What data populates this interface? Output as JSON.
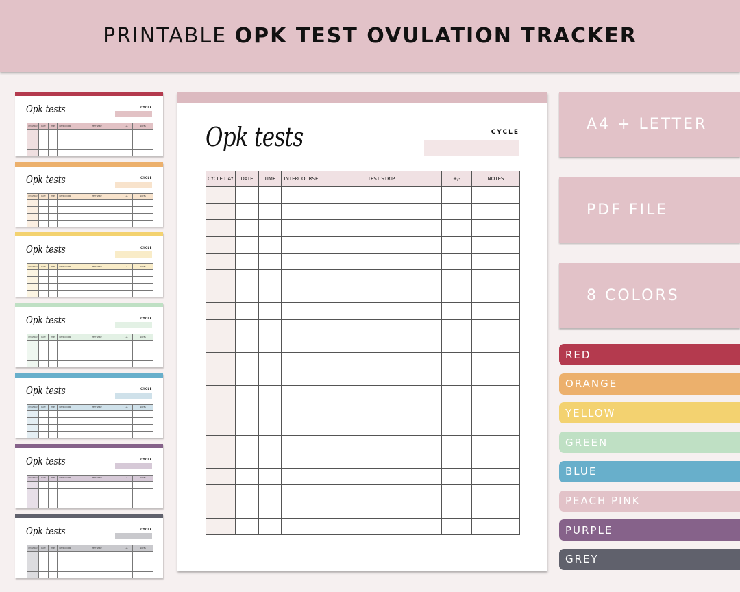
{
  "header": {
    "title_light": "PRINTABLE",
    "title_bold": "OPK TEST OVULATION TRACKER",
    "bg_color": "#e2c2c8"
  },
  "sheet": {
    "title": "Opk tests",
    "cycle_label": "CYCLE",
    "accent_color": "#dcbac0",
    "columns": [
      "CYCLE DAY",
      "DATE",
      "TIME",
      "INTERCOURSE",
      "TEST STRIP",
      "+/-",
      "NOTES"
    ],
    "row_count": 21
  },
  "thumbnails": [
    {
      "color_name": "red",
      "bar": "#b43a4e",
      "header": "#e2c2c5",
      "first_col": "#efdfe0",
      "box": "#e2c2c5"
    },
    {
      "color_name": "orange",
      "bar": "#ecb06c",
      "header": "#f8e3cc",
      "first_col": "#fbefe2",
      "box": "#f8e3cc"
    },
    {
      "color_name": "yellow",
      "bar": "#f3d270",
      "header": "#f9ecc8",
      "first_col": "#fcf5e3",
      "box": "#f9ecc8"
    },
    {
      "color_name": "green",
      "bar": "#bfe0c4",
      "header": "#e3f1e5",
      "first_col": "#eff7f0",
      "box": "#e3f1e5"
    },
    {
      "color_name": "blue",
      "bar": "#68afcb",
      "header": "#cfe1ea",
      "first_col": "#e4eef3",
      "box": "#cfe1ea"
    },
    {
      "color_name": "purple",
      "bar": "#86628a",
      "header": "#d6c9d7",
      "first_col": "#e7dfe8",
      "box": "#d6c9d7"
    },
    {
      "color_name": "grey",
      "bar": "#60616c",
      "header": "#c9c9cd",
      "first_col": "#dcdcdf",
      "box": "#c9c9cd"
    }
  ],
  "features": [
    "A4 + LETTER",
    "PDF FILE",
    "8 COLORS"
  ],
  "colors": [
    {
      "label": "RED",
      "hex": "#b43a4e"
    },
    {
      "label": "ORANGE",
      "hex": "#ecb06c"
    },
    {
      "label": "YELLOW",
      "hex": "#f3d270"
    },
    {
      "label": "GREEN",
      "hex": "#bfe0c4"
    },
    {
      "label": "BLUE",
      "hex": "#68afcb"
    },
    {
      "label": "PEACH PINK",
      "hex": "#e2c2c8"
    },
    {
      "label": "PURPLE",
      "hex": "#86628a"
    },
    {
      "label": "GREY",
      "hex": "#60616c"
    }
  ]
}
